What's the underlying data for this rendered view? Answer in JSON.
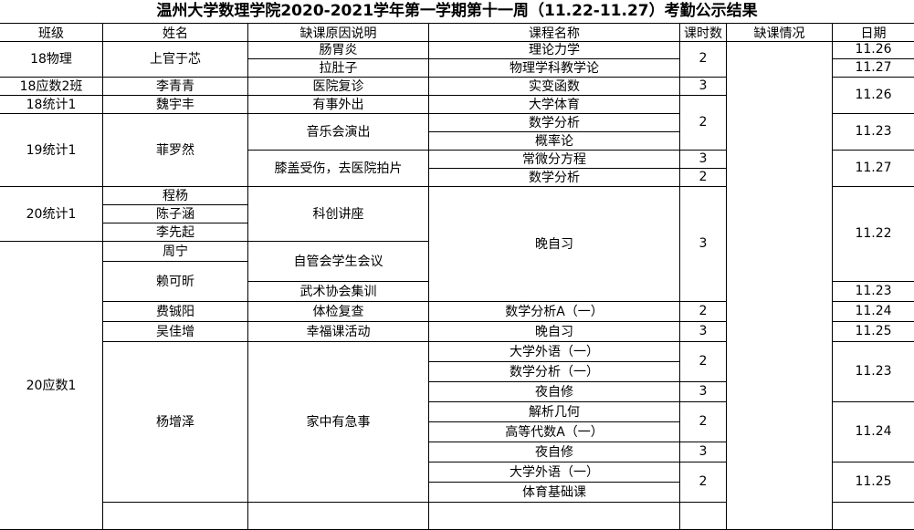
{
  "title": "温州大学数理学院2020-2021学年第一学期第十一周（11.22-11.27）考勤公示结果",
  "headers": [
    "班级",
    "姓名",
    "缺课原因说明",
    "课程名称",
    "课时数",
    "缺课情况",
    "日期"
  ],
  "columns": [
    [
      {
        "text": "18物理",
        "span": 2
      },
      {
        "text": "18应数2班",
        "span": 1
      },
      {
        "text": "18统计1",
        "span": 1
      },
      {
        "text": "19统计1",
        "span": 4
      },
      {
        "text": "20统计1",
        "span": 3
      },
      {
        "text": "20应数1",
        "span": 14
      }
    ],
    [
      {
        "text": "上官于芯",
        "span": 2
      },
      {
        "text": "李青青",
        "span": 1
      },
      {
        "text": "魏宇丰",
        "span": 1
      },
      {
        "text": "菲罗然",
        "span": 4
      },
      {
        "text": "程杨",
        "span": 1
      },
      {
        "text": "陈子涵",
        "span": 1
      },
      {
        "text": "李先起",
        "span": 1
      },
      {
        "text": "周宁",
        "span": 1
      },
      {
        "text": "赖可昕",
        "span": 2
      },
      {
        "text": "费铖阳",
        "span": 1
      },
      {
        "text": "吴佳增",
        "span": 1
      },
      {
        "text": "杨增泽",
        "span": 8
      },
      {
        "text": "",
        "span": 1
      }
    ],
    [
      {
        "text": "肠胃炎",
        "span": 1
      },
      {
        "text": "拉肚子",
        "span": 1
      },
      {
        "text": "医院复诊",
        "span": 1
      },
      {
        "text": "有事外出",
        "span": 1
      },
      {
        "text": "音乐会演出",
        "span": 2
      },
      {
        "text": "膝盖受伤，去医院拍片",
        "span": 2
      },
      {
        "text": "科创讲座",
        "span": 3
      },
      {
        "text": "自管会学生会议",
        "span": 2
      },
      {
        "text": "武术协会集训",
        "span": 1
      },
      {
        "text": "体检复查",
        "span": 1
      },
      {
        "text": "幸福课活动",
        "span": 1
      },
      {
        "text": "家中有急事",
        "span": 8
      },
      {
        "text": "",
        "span": 1
      }
    ],
    [
      {
        "text": "理论力学",
        "span": 1
      },
      {
        "text": "物理学科教学论",
        "span": 1
      },
      {
        "text": "实变函数",
        "span": 1
      },
      {
        "text": "大学体育",
        "span": 1
      },
      {
        "text": "数学分析",
        "span": 1
      },
      {
        "text": "概率论",
        "span": 1
      },
      {
        "text": "常微分方程",
        "span": 1
      },
      {
        "text": "数学分析",
        "span": 1
      },
      {
        "text": "晚自习",
        "span": 6
      },
      {
        "text": "数学分析A（一）",
        "span": 1
      },
      {
        "text": "晚自习",
        "span": 1
      },
      {
        "text": "大学外语（一）",
        "span": 1
      },
      {
        "text": "数学分析（一）",
        "span": 1
      },
      {
        "text": "夜自修",
        "span": 1
      },
      {
        "text": "解析几何",
        "span": 1
      },
      {
        "text": "高等代数A（一）",
        "span": 1
      },
      {
        "text": "夜自修",
        "span": 1
      },
      {
        "text": "大学外语（一）",
        "span": 1
      },
      {
        "text": "体育基础课",
        "span": 1
      },
      {
        "text": "",
        "span": 1
      }
    ],
    [
      {
        "text": "2",
        "span": 2
      },
      {
        "text": "3",
        "span": 1
      },
      {
        "text": "2",
        "span": 3
      },
      {
        "text": "3",
        "span": 1
      },
      {
        "text": "2",
        "span": 1
      },
      {
        "text": "3",
        "span": 6
      },
      {
        "text": "2",
        "span": 1
      },
      {
        "text": "3",
        "span": 1
      },
      {
        "text": "2",
        "span": 2
      },
      {
        "text": "3",
        "span": 1
      },
      {
        "text": "2",
        "span": 2
      },
      {
        "text": "3",
        "span": 1
      },
      {
        "text": "2",
        "span": 2
      },
      {
        "text": "",
        "span": 1
      }
    ],
    [
      {
        "text": "",
        "span": 25
      }
    ],
    [
      {
        "text": "11.26",
        "span": 1
      },
      {
        "text": "11.27",
        "span": 1
      },
      {
        "text": "11.26",
        "span": 2
      },
      {
        "text": "11.23",
        "span": 2
      },
      {
        "text": "11.27",
        "span": 2
      },
      {
        "text": "11.22",
        "span": 5
      },
      {
        "text": "11.23",
        "span": 1
      },
      {
        "text": "11.24",
        "span": 1
      },
      {
        "text": "11.25",
        "span": 1
      },
      {
        "text": "11.23",
        "span": 3
      },
      {
        "text": "11.24",
        "span": 3
      },
      {
        "text": "11.25",
        "span": 2
      },
      {
        "text": "",
        "span": 1
      }
    ]
  ]
}
